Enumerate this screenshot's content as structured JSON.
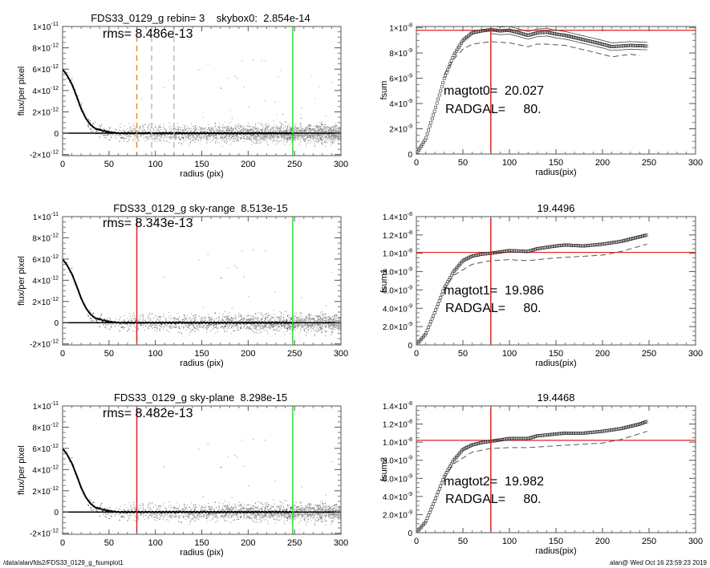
{
  "footer": {
    "path": "/data/alan/fds2/FDS33_0129_g_fsumplot1",
    "stamp": "alan@  Wed Oct 16 23:59:23 2019"
  },
  "chart_data": [
    {
      "type": "scatter",
      "title": "FDS33_0129_g rebin= 3    skybox0:  2.854e-14",
      "annotations": [
        "rms= 8.486e-13"
      ],
      "xlabel": "radius (pix)",
      "ylabel": "flux/per pixel",
      "xlim": [
        0,
        300
      ],
      "ylim": [
        -2.1e-12,
        1e-11
      ],
      "xticks": [
        0,
        50,
        100,
        150,
        200,
        250,
        300
      ],
      "yticks": [
        {
          "v": 1e-11,
          "m": "1×10",
          "e": "-11"
        },
        {
          "v": 8e-12,
          "m": "8×10",
          "e": "-12"
        },
        {
          "v": 6e-12,
          "m": "6×10",
          "e": "-12"
        },
        {
          "v": 4e-12,
          "m": "4×10",
          "e": "-12"
        },
        {
          "v": 2e-12,
          "m": "2×10",
          "e": "-12"
        },
        {
          "v": 0,
          "m": "0",
          "e": ""
        },
        {
          "v": -2e-12,
          "m": "-2×10",
          "e": "-12"
        }
      ],
      "hline": {
        "y": 0,
        "color": "#000000"
      },
      "vlines": [
        {
          "x": 80,
          "color": "#f08a24",
          "dash": true
        },
        {
          "x": 96,
          "color": "#bbbbbb",
          "dash": true
        },
        {
          "x": 120,
          "color": "#bbbbbb",
          "dash": true
        },
        {
          "x": 248,
          "color": "#33dd33",
          "dash": false
        }
      ],
      "profile": {
        "x": [
          0,
          5,
          10,
          15,
          20,
          25,
          30,
          35,
          40,
          50,
          60,
          100,
          150,
          200,
          248
        ],
        "y": [
          6e-12,
          5.4e-12,
          4.6e-12,
          3.5e-12,
          2.3e-12,
          1.4e-12,
          8e-13,
          4.5e-13,
          3e-13,
          1e-13,
          0.0,
          0.0,
          0.0,
          0.0,
          0.0
        ]
      }
    },
    {
      "type": "line",
      "title": "",
      "annotations": [
        "magtot0=  20.027",
        "RADGAL=     80."
      ],
      "xlabel": "radius(pix)",
      "ylabel": "fsum",
      "xlim": [
        0,
        300
      ],
      "ylim": [
        0,
        1.01e-08
      ],
      "xticks": [
        0,
        50,
        100,
        150,
        200,
        250,
        300
      ],
      "yticks": [
        {
          "v": 1e-08,
          "m": "1×10",
          "e": "-8"
        },
        {
          "v": 8e-09,
          "m": "8×10",
          "e": "-9"
        },
        {
          "v": 6e-09,
          "m": "6×10",
          "e": "-9"
        },
        {
          "v": 4e-09,
          "m": "4×10",
          "e": "-9"
        },
        {
          "v": 2e-09,
          "m": "2×10",
          "e": "-9"
        },
        {
          "v": 0,
          "m": "0",
          "e": ""
        }
      ],
      "hline": {
        "y": 9.8e-09,
        "color": "#dd2222"
      },
      "vlines": [
        {
          "x": 80,
          "color": "#dd2222",
          "dash": false
        }
      ],
      "curve": {
        "x": [
          0,
          10,
          20,
          30,
          40,
          50,
          60,
          70,
          80,
          90,
          100,
          110,
          120,
          130,
          140,
          150,
          160,
          180,
          200,
          210,
          220,
          230,
          248
        ],
        "y": [
          0,
          1.2e-09,
          3.5e-09,
          6e-09,
          7.8e-09,
          9e-09,
          9.6e-09,
          9.75e-09,
          9.85e-09,
          9.75e-09,
          9.8e-09,
          9.6e-09,
          9.4e-09,
          9.6e-09,
          9.65e-09,
          9.5e-09,
          9.4e-09,
          9.05e-09,
          8.7e-09,
          8.5e-09,
          8.55e-09,
          8.6e-09,
          8.55e-09
        ]
      },
      "envelope": 3e-10,
      "dashed": {
        "x": [
          30,
          40,
          50,
          60,
          80,
          100,
          120,
          130,
          140,
          160,
          200,
          210,
          230,
          240
        ],
        "y": [
          6.3e-09,
          7.5e-09,
          8.3e-09,
          8.7e-09,
          8.9e-09,
          8.8e-09,
          8.5e-09,
          8.7e-09,
          8.7e-09,
          8.6e-09,
          7.9e-09,
          7.7e-09,
          7.9e-09,
          7.8e-09
        ]
      }
    },
    {
      "type": "scatter",
      "title": "FDS33_0129_g sky-range  8.513e-15",
      "annotations": [
        "rms= 8.343e-13"
      ],
      "xlabel": "radius (pix)",
      "ylabel": "flux/per pixel",
      "xlim": [
        0,
        300
      ],
      "ylim": [
        -2.1e-12,
        1e-11
      ],
      "xticks": [
        0,
        50,
        100,
        150,
        200,
        250,
        300
      ],
      "yticks": [
        {
          "v": 1e-11,
          "m": "1×10",
          "e": "-11"
        },
        {
          "v": 8e-12,
          "m": "8×10",
          "e": "-12"
        },
        {
          "v": 6e-12,
          "m": "6×10",
          "e": "-12"
        },
        {
          "v": 4e-12,
          "m": "4×10",
          "e": "-12"
        },
        {
          "v": 2e-12,
          "m": "2×10",
          "e": "-12"
        },
        {
          "v": 0,
          "m": "0",
          "e": ""
        },
        {
          "v": -2e-12,
          "m": "-2×10",
          "e": "-12"
        }
      ],
      "hline": {
        "y": 0,
        "color": "#000000"
      },
      "vlines": [
        {
          "x": 80,
          "color": "#dd2222",
          "dash": false
        },
        {
          "x": 248,
          "color": "#33dd33",
          "dash": false
        }
      ],
      "profile": {
        "x": [
          0,
          5,
          10,
          15,
          20,
          25,
          30,
          35,
          40,
          50,
          60,
          100,
          150,
          200,
          248
        ],
        "y": [
          6e-12,
          5.4e-12,
          4.6e-12,
          3.5e-12,
          2.3e-12,
          1.4e-12,
          8e-13,
          4.5e-13,
          3e-13,
          1e-13,
          0.0,
          0.0,
          0.0,
          0.0,
          0.0
        ]
      }
    },
    {
      "type": "line",
      "title": "19.4496",
      "annotations": [
        "magtot1=  19.986",
        "RADGAL=     80."
      ],
      "xlabel": "radius(pix)",
      "ylabel": "fsum1",
      "xlim": [
        0,
        300
      ],
      "ylim": [
        0,
        1.4e-08
      ],
      "xticks": [
        0,
        50,
        100,
        150,
        200,
        250,
        300
      ],
      "yticks": [
        {
          "v": 1.4e-08,
          "m": "1.4×10",
          "e": "-8"
        },
        {
          "v": 1.2e-08,
          "m": "1.2×10",
          "e": "-8"
        },
        {
          "v": 1e-08,
          "m": "1.0×10",
          "e": "-8"
        },
        {
          "v": 8e-09,
          "m": "8.0×10",
          "e": "-9"
        },
        {
          "v": 6e-09,
          "m": "6.0×10",
          "e": "-9"
        },
        {
          "v": 4e-09,
          "m": "4.0×10",
          "e": "-9"
        },
        {
          "v": 2e-09,
          "m": "2.0×10",
          "e": "-9"
        },
        {
          "v": 0,
          "m": "0",
          "e": ""
        }
      ],
      "hline": {
        "y": 1.01e-08,
        "color": "#dd2222"
      },
      "vlines": [
        {
          "x": 80,
          "color": "#dd2222",
          "dash": false
        }
      ],
      "curve": {
        "x": [
          0,
          10,
          20,
          30,
          40,
          50,
          60,
          70,
          80,
          100,
          120,
          130,
          150,
          160,
          180,
          200,
          220,
          240,
          248
        ],
        "y": [
          0,
          1.2e-09,
          3.6e-09,
          6.2e-09,
          8e-09,
          9.2e-09,
          9.7e-09,
          9.9e-09,
          1e-08,
          1.03e-08,
          1.02e-08,
          1.05e-08,
          1.08e-08,
          1.09e-08,
          1.08e-08,
          1.1e-08,
          1.13e-08,
          1.18e-08,
          1.2e-08
        ]
      },
      "dashed": {
        "x": [
          30,
          40,
          60,
          80,
          100,
          120,
          150,
          200,
          220,
          248
        ],
        "y": [
          6e-09,
          7.6e-09,
          8.8e-09,
          9.2e-09,
          9.3e-09,
          9.2e-09,
          9.5e-09,
          9.8e-09,
          1.02e-08,
          1.1e-08
        ]
      }
    },
    {
      "type": "scatter",
      "title": "FDS33_0129_g sky-plane  8.298e-15",
      "annotations": [
        "rms= 8.482e-13"
      ],
      "xlabel": "radius (pix)",
      "ylabel": "flux/per pixel",
      "xlim": [
        0,
        300
      ],
      "ylim": [
        -2.1e-12,
        1e-11
      ],
      "xticks": [
        0,
        50,
        100,
        150,
        200,
        250,
        300
      ],
      "yticks": [
        {
          "v": 1e-11,
          "m": "1×10",
          "e": "-11"
        },
        {
          "v": 8e-12,
          "m": "8×10",
          "e": "-12"
        },
        {
          "v": 6e-12,
          "m": "6×10",
          "e": "-12"
        },
        {
          "v": 4e-12,
          "m": "4×10",
          "e": "-12"
        },
        {
          "v": 2e-12,
          "m": "2×10",
          "e": "-12"
        },
        {
          "v": 0,
          "m": "0",
          "e": ""
        },
        {
          "v": -2e-12,
          "m": "-2×10",
          "e": "-12"
        }
      ],
      "hline": {
        "y": 0,
        "color": "#000000"
      },
      "vlines": [
        {
          "x": 80,
          "color": "#dd2222",
          "dash": false
        },
        {
          "x": 248,
          "color": "#33dd33",
          "dash": false
        }
      ],
      "profile": {
        "x": [
          0,
          5,
          10,
          15,
          20,
          25,
          30,
          35,
          40,
          50,
          60,
          100,
          150,
          200,
          248
        ],
        "y": [
          6e-12,
          5.4e-12,
          4.6e-12,
          3.5e-12,
          2.3e-12,
          1.4e-12,
          8e-13,
          4.5e-13,
          3e-13,
          1e-13,
          0.0,
          0.0,
          0.0,
          0.0,
          0.0
        ]
      }
    },
    {
      "type": "line",
      "title": "19.4468",
      "annotations": [
        "magtot2=  19.982",
        "RADGAL=     80."
      ],
      "xlabel": "radius(pix)",
      "ylabel": "fsum2",
      "xlim": [
        0,
        300
      ],
      "ylim": [
        0,
        1.4e-08
      ],
      "xticks": [
        0,
        50,
        100,
        150,
        200,
        250,
        300
      ],
      "yticks": [
        {
          "v": 1.4e-08,
          "m": "1.4×10",
          "e": "-8"
        },
        {
          "v": 1.2e-08,
          "m": "1.2×10",
          "e": "-8"
        },
        {
          "v": 1e-08,
          "m": "1.0×10",
          "e": "-8"
        },
        {
          "v": 8e-09,
          "m": "8.0×10",
          "e": "-9"
        },
        {
          "v": 6e-09,
          "m": "6.0×10",
          "e": "-9"
        },
        {
          "v": 4e-09,
          "m": "4.0×10",
          "e": "-9"
        },
        {
          "v": 2e-09,
          "m": "2.0×10",
          "e": "-9"
        },
        {
          "v": 0,
          "m": "0",
          "e": ""
        }
      ],
      "hline": {
        "y": 1.02e-08,
        "color": "#dd2222"
      },
      "vlines": [
        {
          "x": 80,
          "color": "#dd2222",
          "dash": false
        }
      ],
      "curve": {
        "x": [
          0,
          10,
          20,
          30,
          40,
          50,
          60,
          70,
          80,
          100,
          120,
          130,
          150,
          160,
          180,
          200,
          220,
          240,
          248
        ],
        "y": [
          0,
          1.2e-09,
          3.6e-09,
          6.2e-09,
          8e-09,
          9.2e-09,
          9.7e-09,
          9.95e-09,
          1.01e-08,
          1.04e-08,
          1.04e-08,
          1.07e-08,
          1.09e-08,
          1.1e-08,
          1.1e-08,
          1.12e-08,
          1.15e-08,
          1.2e-08,
          1.23e-08
        ]
      },
      "dashed": {
        "x": [
          30,
          40,
          60,
          80,
          100,
          120,
          150,
          200,
          220,
          248
        ],
        "y": [
          6e-09,
          7.6e-09,
          8.9e-09,
          9.3e-09,
          9.4e-09,
          9.4e-09,
          9.6e-09,
          9.9e-09,
          1.03e-08,
          1.12e-08
        ]
      }
    }
  ]
}
